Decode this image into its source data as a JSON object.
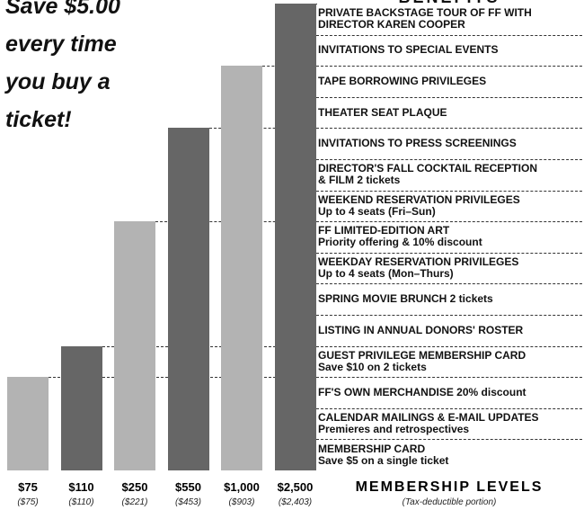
{
  "promo": {
    "lines": [
      "Save $5.00",
      "every time",
      "you buy a",
      "ticket!"
    ]
  },
  "benefits_title": "BENEFITS",
  "benefits": [
    {
      "line1": "PRIVATE BACKSTAGE TOUR OF FF WITH",
      "line2": "DIRECTOR KAREN COOPER"
    },
    {
      "line1": "INVITATIONS TO SPECIAL EVENTS",
      "line2": ""
    },
    {
      "line1": "TAPE BORROWING PRIVILEGES",
      "line2": ""
    },
    {
      "line1": "THEATER SEAT PLAQUE",
      "line2": ""
    },
    {
      "line1": "INVITATIONS TO PRESS SCREENINGS",
      "line2": ""
    },
    {
      "line1": "DIRECTOR'S FALL COCKTAIL RECEPTION",
      "line2": "& FILM  2 tickets"
    },
    {
      "line1": "WEEKEND RESERVATION PRIVILEGES",
      "line2": "Up to 4 seats (Fri–Sun)"
    },
    {
      "line1": "FF LIMITED-EDITION ART",
      "line2": "Priority offering & 10% discount"
    },
    {
      "line1": "WEEKDAY RESERVATION PRIVILEGES",
      "line2": "Up to 4 seats (Mon–Thurs)"
    },
    {
      "line1": "SPRING MOVIE BRUNCH  2 tickets",
      "line2": ""
    },
    {
      "line1": "LISTING IN ANNUAL DONORS' ROSTER",
      "line2": ""
    },
    {
      "line1": "GUEST PRIVILEGE MEMBERSHIP CARD",
      "line2": "Save $10 on 2 tickets"
    },
    {
      "line1": "FF'S OWN MERCHANDISE  20% discount",
      "line2": ""
    },
    {
      "line1": "CALENDAR MAILINGS & E-MAIL UPDATES",
      "line2": "Premieres and retrospectives"
    },
    {
      "line1": "MEMBERSHIP CARD",
      "line2": "Save $5 on a single ticket"
    }
  ],
  "levels_title": "MEMBERSHIP LEVELS",
  "levels_subtitle": "(Tax-deductible portion)",
  "colors": {
    "light_bar": "#b3b3b3",
    "dark_bar": "#666666",
    "dash": "#333333"
  },
  "chart_data": {
    "type": "bar",
    "categories": [
      "$75",
      "$110",
      "$250",
      "$550",
      "$1,000",
      "$2,500"
    ],
    "tax_deductible_labels": [
      "($75)",
      "($110)",
      "($221)",
      "($453)",
      "($903)",
      "($2,403)"
    ],
    "benefits_count": [
      3,
      4,
      8,
      11,
      13,
      15
    ],
    "bar_shade": [
      "light",
      "dark",
      "light",
      "dark",
      "light",
      "dark"
    ],
    "ylim": [
      0,
      15
    ]
  }
}
